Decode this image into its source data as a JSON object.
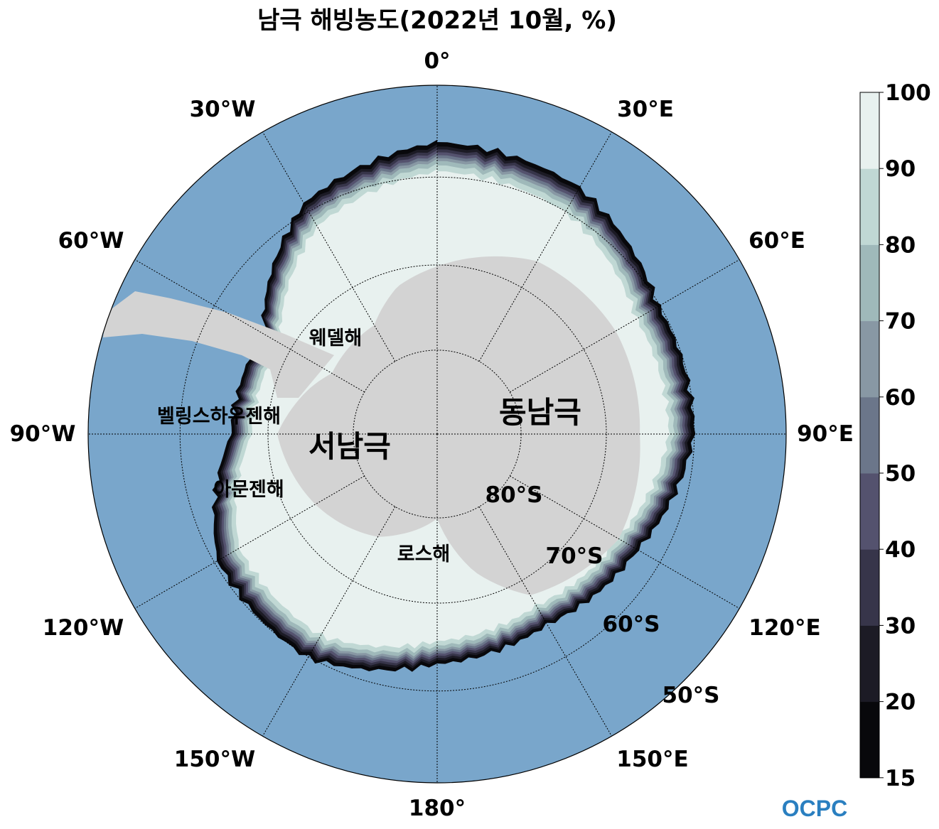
{
  "title": "남극 해빙농도(2022년 10월, %)",
  "longitude_labels": {
    "lon_0": "0°",
    "lon_30e": "30°E",
    "lon_60e": "60°E",
    "lon_90e": "90°E",
    "lon_120e": "120°E",
    "lon_150e": "150°E",
    "lon_180": "180°",
    "lon_150w": "150°W",
    "lon_120w": "120°W",
    "lon_90w": "90°W",
    "lon_60w": "60°W",
    "lon_30w": "30°W"
  },
  "latitude_labels": {
    "lat_80": "80°S",
    "lat_70": "70°S",
    "lat_60": "60°S",
    "lat_50": "50°S"
  },
  "region_labels": {
    "weddell": "웨델해",
    "bellingshausen": "벨링스하우젠해",
    "amundsen": "아문젠해",
    "ross": "로스해",
    "west_antarctica": "서남극",
    "east_antarctica": "동남극"
  },
  "colorbar": {
    "ticks": [
      "15",
      "20",
      "30",
      "40",
      "50",
      "60",
      "70",
      "80",
      "90",
      "100"
    ],
    "levels": [
      15,
      20,
      30,
      40,
      50,
      60,
      70,
      80,
      90,
      100
    ],
    "colors": [
      "#08080b",
      "#1c1b25",
      "#37354a",
      "#54526e",
      "#6b768a",
      "#8898a4",
      "#9fb9ba",
      "#c0d8d4",
      "#e8f1ef"
    ]
  },
  "map_colors": {
    "ocean": "#79a6cb",
    "land": "#d3d3d3"
  },
  "logo": "OCPC"
}
